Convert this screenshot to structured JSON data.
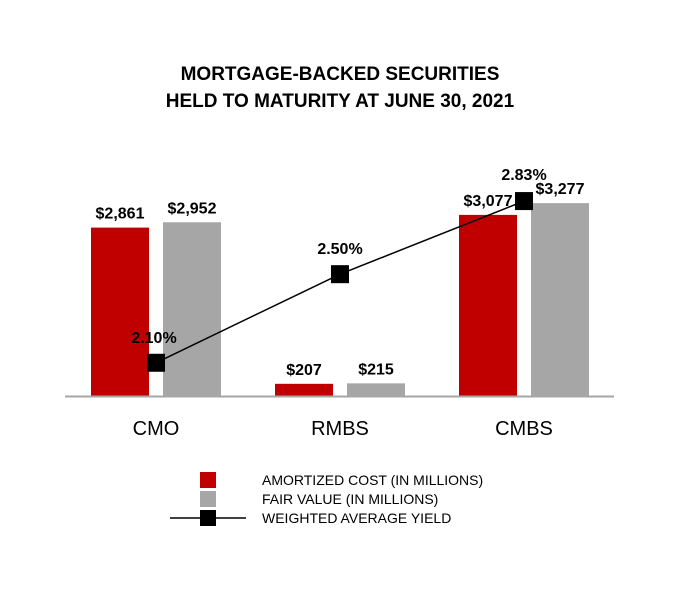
{
  "chart_data": {
    "type": "bar",
    "title_lines": [
      "MORTGAGE-BACKED SECURITIES",
      "HELD TO MATURITY AT JUNE 30, 2021"
    ],
    "categories": [
      "CMO",
      "RMBS",
      "CMBS"
    ],
    "series": [
      {
        "name": "AMORTIZED COST (IN MILLIONS)",
        "kind": "bar",
        "color": "#c00000",
        "values": [
          2861,
          207,
          3077
        ],
        "labels": [
          "$2,861",
          "$207",
          "$3,077"
        ]
      },
      {
        "name": "FAIR VALUE (IN MILLIONS)",
        "kind": "bar",
        "color": "#a6a6a6",
        "values": [
          2952,
          215,
          3277
        ],
        "labels": [
          "$2,952",
          "$215",
          "$3,277"
        ]
      },
      {
        "name": "WEIGHTED AVERAGE YIELD",
        "kind": "line",
        "color": "#000000",
        "values": [
          2.1,
          2.5,
          2.83
        ],
        "labels": [
          "2.10%",
          "2.50%",
          "2.83%"
        ]
      }
    ],
    "ylim": [
      0,
      3500
    ],
    "y2lim": [
      1.95,
      2.88
    ],
    "grid": false,
    "legend_position": "bottom"
  }
}
